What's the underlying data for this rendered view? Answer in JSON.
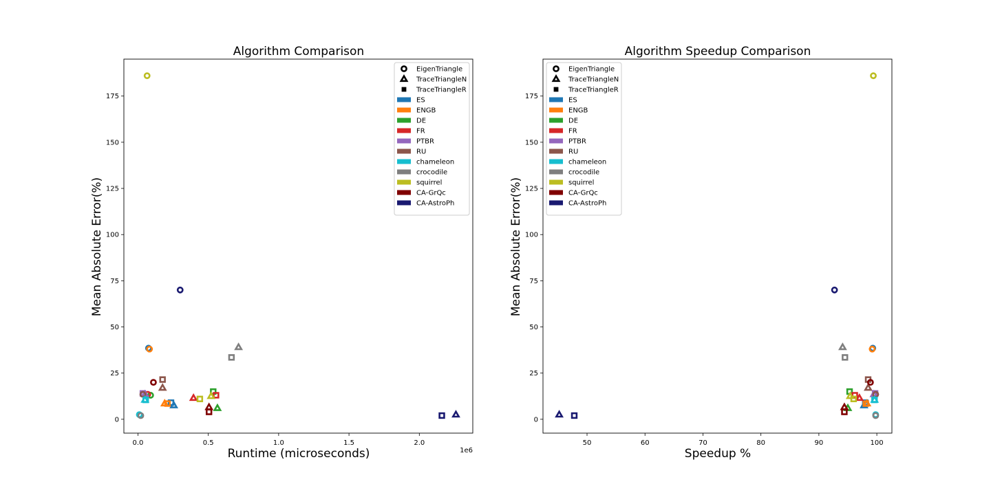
{
  "chart_data": [
    {
      "type": "scatter",
      "title": "Algorithm Comparison",
      "xlabel": "Runtime (microseconds)",
      "ylabel": "Mean Absolute Error(%)",
      "x_multiplier_label": "1e6",
      "xlim": [
        -0.1,
        2.38
      ],
      "ylim": [
        -7.5,
        195
      ],
      "xticks": [
        0.0,
        0.5,
        1.0,
        1.5,
        2.0
      ],
      "xtick_labels": [
        "0.0",
        "0.5",
        "1.0",
        "1.5",
        "2.0"
      ],
      "yticks": [
        0,
        25,
        50,
        75,
        100,
        125,
        150,
        175
      ],
      "ytick_labels": [
        "0",
        "25",
        "50",
        "75",
        "100",
        "125",
        "150",
        "175"
      ],
      "grid": false,
      "legend_position": "top-right",
      "points": [
        {
          "dataset": "ES",
          "algorithm": "EigenTriangle",
          "x": 0.075,
          "y": 38.5
        },
        {
          "dataset": "ES",
          "algorithm": "TraceTriangleR",
          "x": 0.235,
          "y": 9
        },
        {
          "dataset": "ES",
          "algorithm": "TraceTriangleN",
          "x": 0.255,
          "y": 7.5
        },
        {
          "dataset": "ENGB",
          "algorithm": "EigenTriangle",
          "x": 0.082,
          "y": 38
        },
        {
          "dataset": "ENGB",
          "algorithm": "TraceTriangleR",
          "x": 0.21,
          "y": 8.5
        },
        {
          "dataset": "ENGB",
          "algorithm": "TraceTriangleN",
          "x": 0.19,
          "y": 8.5
        },
        {
          "dataset": "DE",
          "algorithm": "EigenTriangle",
          "x": 0.09,
          "y": 13
        },
        {
          "dataset": "DE",
          "algorithm": "TraceTriangleR",
          "x": 0.535,
          "y": 15
        },
        {
          "dataset": "DE",
          "algorithm": "TraceTriangleN",
          "x": 0.565,
          "y": 6
        },
        {
          "dataset": "FR",
          "algorithm": "EigenTriangle",
          "x": 0.07,
          "y": 13.5
        },
        {
          "dataset": "FR",
          "algorithm": "TraceTriangleR",
          "x": 0.555,
          "y": 13
        },
        {
          "dataset": "FR",
          "algorithm": "TraceTriangleN",
          "x": 0.395,
          "y": 11.5
        },
        {
          "dataset": "PTBR",
          "algorithm": "EigenTriangle",
          "x": 0.04,
          "y": 13.5
        },
        {
          "dataset": "PTBR",
          "algorithm": "TraceTriangleR",
          "x": 0.035,
          "y": 14
        },
        {
          "dataset": "PTBR",
          "algorithm": "TraceTriangleN",
          "x": 0.05,
          "y": 13.5
        },
        {
          "dataset": "RU",
          "algorithm": "EigenTriangle",
          "x": 0.035,
          "y": 13.5
        },
        {
          "dataset": "RU",
          "algorithm": "TraceTriangleR",
          "x": 0.175,
          "y": 21.5
        },
        {
          "dataset": "RU",
          "algorithm": "TraceTriangleN",
          "x": 0.175,
          "y": 17
        },
        {
          "dataset": "chameleon",
          "algorithm": "EigenTriangle",
          "x": 0.01,
          "y": 2.5
        },
        {
          "dataset": "chameleon",
          "algorithm": "TraceTriangleR",
          "x": 0.055,
          "y": 10.5
        },
        {
          "dataset": "chameleon",
          "algorithm": "TraceTriangleN",
          "x": 0.05,
          "y": 10.5
        },
        {
          "dataset": "crocodile",
          "algorithm": "EigenTriangle",
          "x": 0.02,
          "y": 2
        },
        {
          "dataset": "crocodile",
          "algorithm": "TraceTriangleR",
          "x": 0.665,
          "y": 33.5
        },
        {
          "dataset": "crocodile",
          "algorithm": "TraceTriangleN",
          "x": 0.715,
          "y": 39
        },
        {
          "dataset": "squirrel",
          "algorithm": "EigenTriangle",
          "x": 0.065,
          "y": 186
        },
        {
          "dataset": "squirrel",
          "algorithm": "TraceTriangleR",
          "x": 0.44,
          "y": 11
        },
        {
          "dataset": "squirrel",
          "algorithm": "TraceTriangleN",
          "x": 0.52,
          "y": 12.5
        },
        {
          "dataset": "CA-GrQc",
          "algorithm": "EigenTriangle",
          "x": 0.11,
          "y": 20
        },
        {
          "dataset": "CA-GrQc",
          "algorithm": "TraceTriangleR",
          "x": 0.505,
          "y": 4
        },
        {
          "dataset": "CA-GrQc",
          "algorithm": "TraceTriangleN",
          "x": 0.505,
          "y": 6.5
        },
        {
          "dataset": "CA-AstroPh",
          "algorithm": "EigenTriangle",
          "x": 0.3,
          "y": 70
        },
        {
          "dataset": "CA-AstroPh",
          "algorithm": "TraceTriangleR",
          "x": 2.16,
          "y": 2
        },
        {
          "dataset": "CA-AstroPh",
          "algorithm": "TraceTriangleN",
          "x": 2.26,
          "y": 2.5
        }
      ]
    },
    {
      "type": "scatter",
      "title": "Algorithm Speedup Comparison",
      "xlabel": "Speedup %",
      "ylabel": "Mean Absolute Error(%)",
      "xlim": [
        42.4,
        102.6
      ],
      "ylim": [
        -7.5,
        195
      ],
      "xticks": [
        50,
        60,
        70,
        80,
        90,
        100
      ],
      "xtick_labels": [
        "50",
        "60",
        "70",
        "80",
        "90",
        "100"
      ],
      "yticks": [
        0,
        25,
        50,
        75,
        100,
        125,
        150,
        175
      ],
      "ytick_labels": [
        "0",
        "25",
        "50",
        "75",
        "100",
        "125",
        "150",
        "175"
      ],
      "grid": false,
      "legend_position": "top-left",
      "points": [
        {
          "dataset": "ES",
          "algorithm": "EigenTriangle",
          "x": 99.3,
          "y": 38.5
        },
        {
          "dataset": "ES",
          "algorithm": "TraceTriangleR",
          "x": 98.0,
          "y": 9
        },
        {
          "dataset": "ES",
          "algorithm": "TraceTriangleN",
          "x": 97.8,
          "y": 7.5
        },
        {
          "dataset": "ENGB",
          "algorithm": "EigenTriangle",
          "x": 99.2,
          "y": 38
        },
        {
          "dataset": "ENGB",
          "algorithm": "TraceTriangleR",
          "x": 98.1,
          "y": 8.5
        },
        {
          "dataset": "ENGB",
          "algorithm": "TraceTriangleN",
          "x": 98.3,
          "y": 8.5
        },
        {
          "dataset": "DE",
          "algorithm": "EigenTriangle",
          "x": 99.6,
          "y": 13
        },
        {
          "dataset": "DE",
          "algorithm": "TraceTriangleR",
          "x": 95.3,
          "y": 15
        },
        {
          "dataset": "DE",
          "algorithm": "TraceTriangleN",
          "x": 95.0,
          "y": 6
        },
        {
          "dataset": "FR",
          "algorithm": "EigenTriangle",
          "x": 99.7,
          "y": 13.5
        },
        {
          "dataset": "FR",
          "algorithm": "TraceTriangleR",
          "x": 96.2,
          "y": 13
        },
        {
          "dataset": "FR",
          "algorithm": "TraceTriangleN",
          "x": 97.0,
          "y": 11.5
        },
        {
          "dataset": "PTBR",
          "algorithm": "EigenTriangle",
          "x": 99.8,
          "y": 13.5
        },
        {
          "dataset": "PTBR",
          "algorithm": "TraceTriangleR",
          "x": 99.7,
          "y": 14
        },
        {
          "dataset": "PTBR",
          "algorithm": "TraceTriangleN",
          "x": 99.5,
          "y": 13.5
        },
        {
          "dataset": "RU",
          "algorithm": "EigenTriangle",
          "x": 99.8,
          "y": 13.5
        },
        {
          "dataset": "RU",
          "algorithm": "TraceTriangleR",
          "x": 98.5,
          "y": 21.5
        },
        {
          "dataset": "RU",
          "algorithm": "TraceTriangleN",
          "x": 98.5,
          "y": 17
        },
        {
          "dataset": "chameleon",
          "algorithm": "EigenTriangle",
          "x": 99.8,
          "y": 2.5
        },
        {
          "dataset": "chameleon",
          "algorithm": "TraceTriangleR",
          "x": 99.6,
          "y": 10.5
        },
        {
          "dataset": "chameleon",
          "algorithm": "TraceTriangleN",
          "x": 99.6,
          "y": 10.5
        },
        {
          "dataset": "crocodile",
          "algorithm": "EigenTriangle",
          "x": 99.8,
          "y": 2
        },
        {
          "dataset": "crocodile",
          "algorithm": "TraceTriangleR",
          "x": 94.5,
          "y": 33.5
        },
        {
          "dataset": "crocodile",
          "algorithm": "TraceTriangleN",
          "x": 94.1,
          "y": 39
        },
        {
          "dataset": "squirrel",
          "algorithm": "EigenTriangle",
          "x": 99.4,
          "y": 186
        },
        {
          "dataset": "squirrel",
          "algorithm": "TraceTriangleR",
          "x": 96.0,
          "y": 11
        },
        {
          "dataset": "squirrel",
          "algorithm": "TraceTriangleN",
          "x": 95.4,
          "y": 12.5
        },
        {
          "dataset": "CA-GrQc",
          "algorithm": "EigenTriangle",
          "x": 98.9,
          "y": 20
        },
        {
          "dataset": "CA-GrQc",
          "algorithm": "TraceTriangleR",
          "x": 94.4,
          "y": 4
        },
        {
          "dataset": "CA-GrQc",
          "algorithm": "TraceTriangleN",
          "x": 94.4,
          "y": 6.5
        },
        {
          "dataset": "CA-AstroPh",
          "algorithm": "EigenTriangle",
          "x": 92.7,
          "y": 70
        },
        {
          "dataset": "CA-AstroPh",
          "algorithm": "TraceTriangleR",
          "x": 47.8,
          "y": 2
        },
        {
          "dataset": "CA-AstroPh",
          "algorithm": "TraceTriangleN",
          "x": 45.2,
          "y": 2.5
        }
      ]
    }
  ],
  "legend": {
    "markers": [
      {
        "label": "EigenTriangle",
        "shape": "circle"
      },
      {
        "label": "TraceTriangleN",
        "shape": "triangle"
      },
      {
        "label": "TraceTriangleR",
        "shape": "square"
      }
    ],
    "datasets": [
      {
        "label": "ES",
        "color": "#1f77b4"
      },
      {
        "label": "ENGB",
        "color": "#ff7f0e"
      },
      {
        "label": "DE",
        "color": "#2ca02c"
      },
      {
        "label": "FR",
        "color": "#d62728"
      },
      {
        "label": "PTBR",
        "color": "#9467bd"
      },
      {
        "label": "RU",
        "color": "#8c564b"
      },
      {
        "label": "chameleon",
        "color": "#17becf"
      },
      {
        "label": "crocodile",
        "color": "#7f7f7f"
      },
      {
        "label": "squirrel",
        "color": "#bcbd22"
      },
      {
        "label": "CA-GrQc",
        "color": "#800000"
      },
      {
        "label": "CA-AstroPh",
        "color": "#191970"
      }
    ]
  }
}
